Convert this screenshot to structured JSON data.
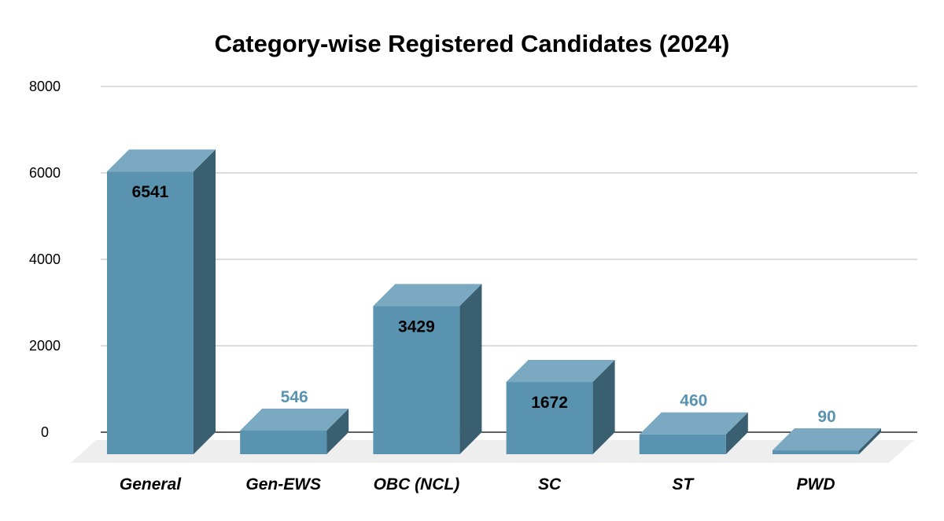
{
  "chart_data": {
    "type": "bar",
    "style": "3d",
    "title": "Category-wise Registered Candidates (2024)",
    "xlabel": "",
    "ylabel": "",
    "categories": [
      "General",
      "Gen-EWS",
      "OBC (NCL)",
      "SC",
      "ST",
      "PWD"
    ],
    "values": [
      6541,
      546,
      3429,
      1672,
      460,
      90
    ],
    "ylim": [
      0,
      8000
    ],
    "yticks": [
      0,
      2000,
      4000,
      6000,
      8000
    ],
    "grid": true,
    "legend": "none",
    "colors": {
      "front": "#5a93b0",
      "top": "#7aa9c1",
      "side": "#3a5f71",
      "floor": "#eeeeee",
      "label_outside": "#5a93b0",
      "label_inside": "#000000"
    }
  }
}
